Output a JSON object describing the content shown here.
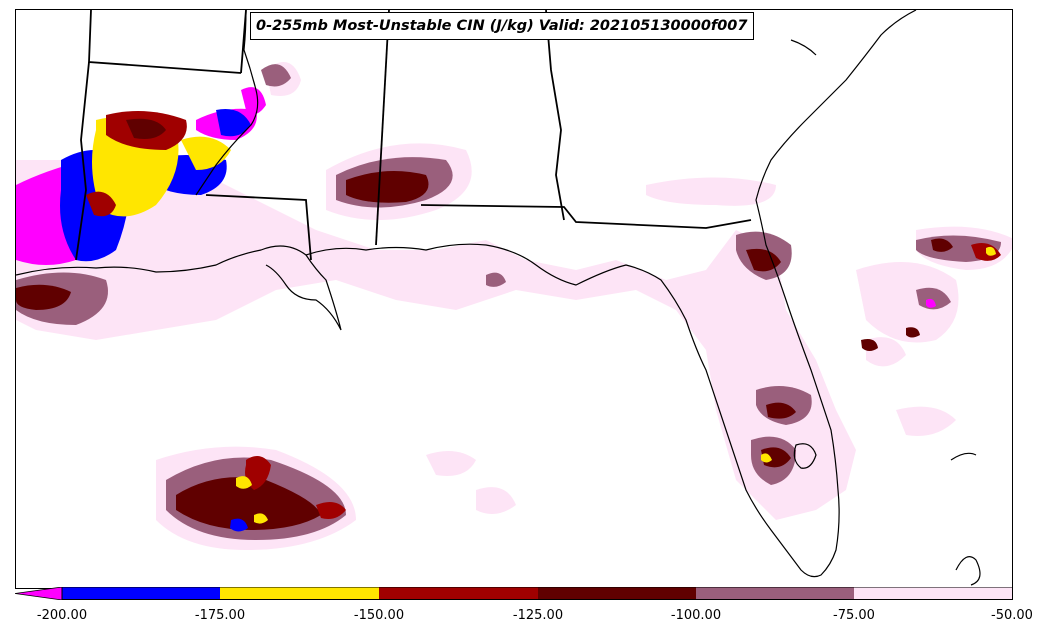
{
  "title": "0-255mb Most-Unstable CIN (J/kg) Valid: 202105130000f007",
  "colorbar": {
    "ticks": [
      "-200.00",
      "-175.00",
      "-150.00",
      "-125.00",
      "-100.00",
      "-75.00",
      "-50.00"
    ],
    "bins": [
      {
        "range": "< -200",
        "color": "#ff00ff"
      },
      {
        "range": "-200 to -175",
        "color": "#0000ff"
      },
      {
        "range": "-175 to -150",
        "color": "#ffe600"
      },
      {
        "range": "-150 to -125",
        "color": "#a00000"
      },
      {
        "range": "-125 to -100",
        "color": "#600000"
      },
      {
        "range": "-100 to -75",
        "color": "#9a5f7c"
      },
      {
        "range": "-75 to -50",
        "color": "#fde4f6"
      }
    ],
    "extend": "min"
  },
  "map": {
    "region": "U.S. Gulf Coast / Southeast",
    "features": [
      "state boundaries",
      "coastlines",
      "Florida peninsula",
      "Gulf of Mexico",
      "Bahamas"
    ]
  }
}
